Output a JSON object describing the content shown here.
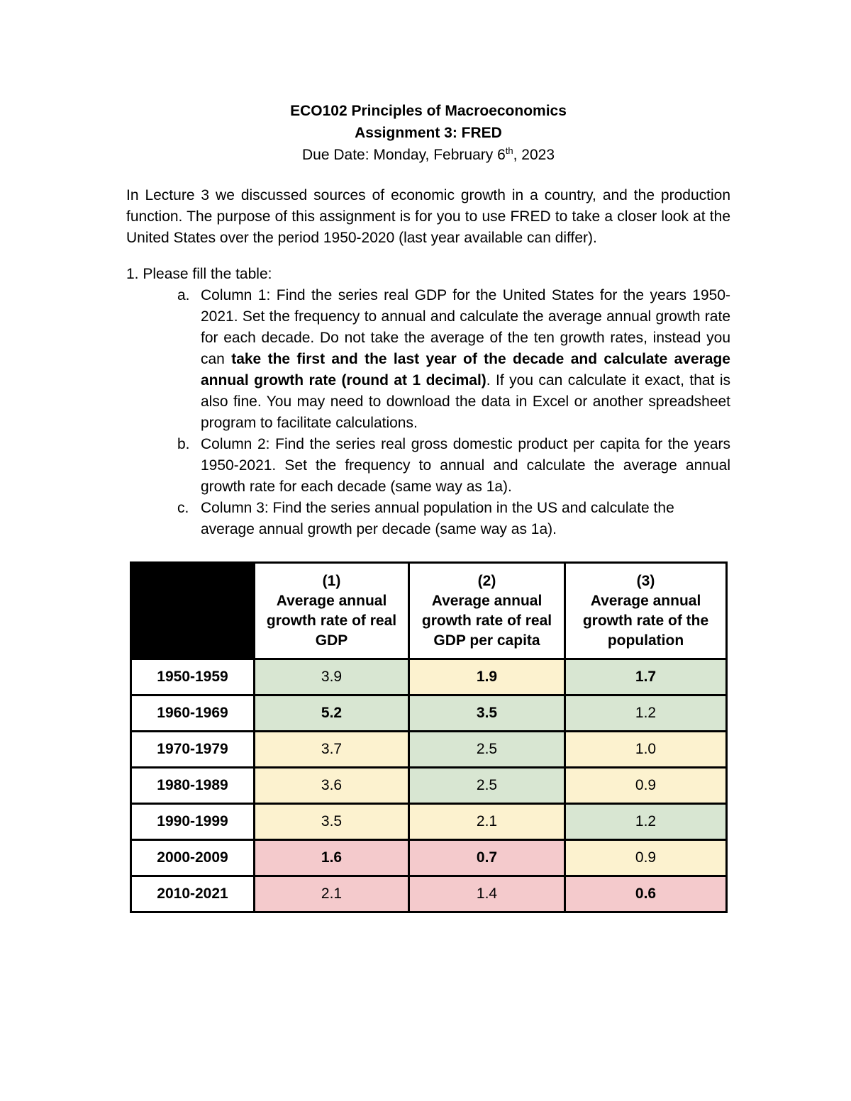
{
  "document": {
    "title": "ECO102 Principles of Macroeconomics",
    "subtitle": "Assignment 3: FRED",
    "due_date": {
      "prefix": "Due Date: Monday, February 6",
      "superscript": "th",
      "suffix": ", 2023"
    },
    "intro": "In Lecture 3 we discussed sources of economic growth in a country, and the production function. The purpose of this assignment is for you to use FRED to take a closer look at the United States over the period 1950-2020 (last year available can differ).",
    "list_heading": "1. Please fill the table:",
    "items": {
      "a": {
        "marker": "a.",
        "text_before_bold": "Column 1: Find the series real GDP for the United States for the years 1950-2021. Set the frequency to annual and calculate the average annual growth rate for each decade. Do not take the average of the ten growth rates, instead you can ",
        "bold_text": "take the first and the last year of the decade and calculate average annual growth rate (round at 1 decimal)",
        "text_after_bold": ". If you can calculate it exact, that is also fine. You may need to download the data in Excel or another spreadsheet program to facilitate calculations."
      },
      "b": {
        "marker": "b.",
        "text": "Column 2: Find the series real gross domestic product per capita for the years 1950-2021. Set the frequency to annual and calculate the average annual growth rate for each decade (same way as 1a)."
      },
      "c": {
        "marker": "c.",
        "text": "Column 3: Find the series annual population in the US and calculate the average annual growth per decade (same way as 1a)."
      }
    }
  },
  "table": {
    "colors": {
      "green": "#d8e6d2",
      "yellow": "#fcf2cf",
      "red": "#f4cacc"
    },
    "columns": [
      {
        "num": "(1)",
        "label": "Average annual growth rate of real GDP"
      },
      {
        "num": "(2)",
        "label": "Average annual growth rate of real GDP per capita"
      },
      {
        "num": "(3)",
        "label": "Average annual growth rate of the population"
      }
    ],
    "rows": [
      {
        "label": "1950-1959",
        "cells": [
          {
            "value": "3.9",
            "color": "green",
            "bold": false
          },
          {
            "value": "1.9",
            "color": "yellow",
            "bold": true
          },
          {
            "value": "1.7",
            "color": "green",
            "bold": true
          }
        ]
      },
      {
        "label": "1960-1969",
        "cells": [
          {
            "value": "5.2",
            "color": "green",
            "bold": true
          },
          {
            "value": "3.5",
            "color": "green",
            "bold": true
          },
          {
            "value": "1.2",
            "color": "green",
            "bold": false
          }
        ]
      },
      {
        "label": "1970-1979",
        "cells": [
          {
            "value": "3.7",
            "color": "yellow",
            "bold": false
          },
          {
            "value": "2.5",
            "color": "green",
            "bold": false
          },
          {
            "value": "1.0",
            "color": "yellow",
            "bold": false
          }
        ]
      },
      {
        "label": "1980-1989",
        "cells": [
          {
            "value": "3.6",
            "color": "yellow",
            "bold": false
          },
          {
            "value": "2.5",
            "color": "green",
            "bold": false
          },
          {
            "value": "0.9",
            "color": "yellow",
            "bold": false
          }
        ]
      },
      {
        "label": "1990-1999",
        "cells": [
          {
            "value": "3.5",
            "color": "yellow",
            "bold": false
          },
          {
            "value": "2.1",
            "color": "yellow",
            "bold": false
          },
          {
            "value": "1.2",
            "color": "green",
            "bold": false
          }
        ]
      },
      {
        "label": "2000-2009",
        "cells": [
          {
            "value": "1.6",
            "color": "red",
            "bold": true
          },
          {
            "value": "0.7",
            "color": "red",
            "bold": true
          },
          {
            "value": "0.9",
            "color": "yellow",
            "bold": false
          }
        ]
      },
      {
        "label": "2010-2021",
        "cells": [
          {
            "value": "2.1",
            "color": "red",
            "bold": false
          },
          {
            "value": "1.4",
            "color": "red",
            "bold": false
          },
          {
            "value": "0.6",
            "color": "red",
            "bold": true
          }
        ]
      }
    ]
  }
}
